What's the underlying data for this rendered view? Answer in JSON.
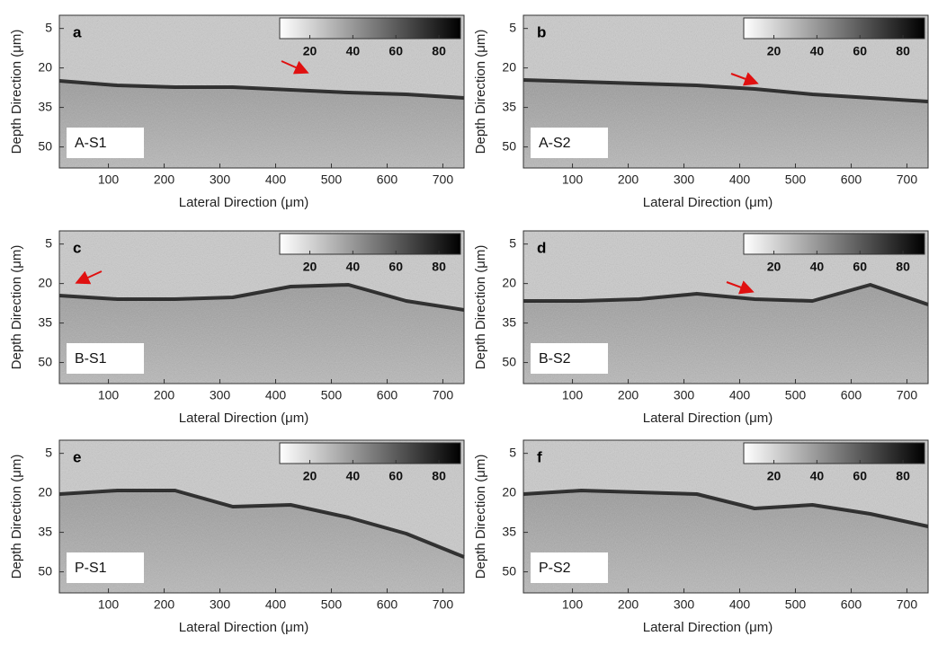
{
  "chart_data": [
    {
      "type": "heatmap",
      "panel_label": "a",
      "sample_label": "A-S1",
      "x_label": "Lateral Direction (μm)",
      "y_label": "Depth Direction (μm)",
      "xlim": [
        12,
        738
      ],
      "ylim": [
        0,
        58
      ],
      "xticks": [
        100,
        200,
        300,
        400,
        500,
        600,
        700
      ],
      "yticks": [
        5,
        20,
        35,
        50
      ],
      "colorbar_lim": [
        6,
        90
      ],
      "colorbar_ticks": [
        20,
        40,
        60,
        80
      ],
      "colormap": [
        "#ffffff",
        "#000000"
      ]
    },
    {
      "type": "heatmap",
      "panel_label": "b",
      "sample_label": "A-S2",
      "x_label": "Lateral Direction (μm)",
      "y_label": "Depth Direction (μm)",
      "xlim": [
        12,
        738
      ],
      "ylim": [
        0,
        58
      ],
      "xticks": [
        100,
        200,
        300,
        400,
        500,
        600,
        700
      ],
      "yticks": [
        5,
        20,
        35,
        50
      ],
      "colorbar_lim": [
        6,
        90
      ],
      "colorbar_ticks": [
        20,
        40,
        60,
        80
      ],
      "colormap": [
        "#ffffff",
        "#000000"
      ]
    },
    {
      "type": "heatmap",
      "panel_label": "c",
      "sample_label": "B-S1",
      "x_label": "Lateral Direction (μm)",
      "y_label": "Depth Direction (μm)",
      "xlim": [
        12,
        738
      ],
      "ylim": [
        0,
        58
      ],
      "xticks": [
        100,
        200,
        300,
        400,
        500,
        600,
        700
      ],
      "yticks": [
        5,
        20,
        35,
        50
      ],
      "colorbar_lim": [
        6,
        90
      ],
      "colorbar_ticks": [
        20,
        40,
        60,
        80
      ],
      "colormap": [
        "#ffffff",
        "#000000"
      ]
    },
    {
      "type": "heatmap",
      "panel_label": "d",
      "sample_label": "B-S2",
      "x_label": "Lateral Direction (μm)",
      "y_label": "Depth Direction (μm)",
      "xlim": [
        12,
        738
      ],
      "ylim": [
        0,
        58
      ],
      "xticks": [
        100,
        200,
        300,
        400,
        500,
        600,
        700
      ],
      "yticks": [
        5,
        20,
        35,
        50
      ],
      "colorbar_lim": [
        6,
        90
      ],
      "colorbar_ticks": [
        20,
        40,
        60,
        80
      ],
      "colormap": [
        "#ffffff",
        "#000000"
      ]
    },
    {
      "type": "heatmap",
      "panel_label": "e",
      "sample_label": "P-S1",
      "x_label": "Lateral Direction (μm)",
      "y_label": "Depth Direction (μm)",
      "xlim": [
        12,
        738
      ],
      "ylim": [
        0,
        58
      ],
      "xticks": [
        100,
        200,
        300,
        400,
        500,
        600,
        700
      ],
      "yticks": [
        5,
        20,
        35,
        50
      ],
      "colorbar_lim": [
        6,
        90
      ],
      "colorbar_ticks": [
        20,
        40,
        60,
        80
      ],
      "colormap": [
        "#ffffff",
        "#000000"
      ]
    },
    {
      "type": "heatmap",
      "panel_label": "f",
      "sample_label": "P-S2",
      "x_label": "Lateral Direction (μm)",
      "y_label": "Depth Direction (μm)",
      "xlim": [
        12,
        738
      ],
      "ylim": [
        0,
        58
      ],
      "xticks": [
        100,
        200,
        300,
        400,
        500,
        600,
        700
      ],
      "yticks": [
        5,
        20,
        35,
        50
      ],
      "colorbar_lim": [
        6,
        90
      ],
      "colorbar_ticks": [
        20,
        40,
        60,
        80
      ],
      "colormap": [
        "#ffffff",
        "#000000"
      ]
    }
  ]
}
